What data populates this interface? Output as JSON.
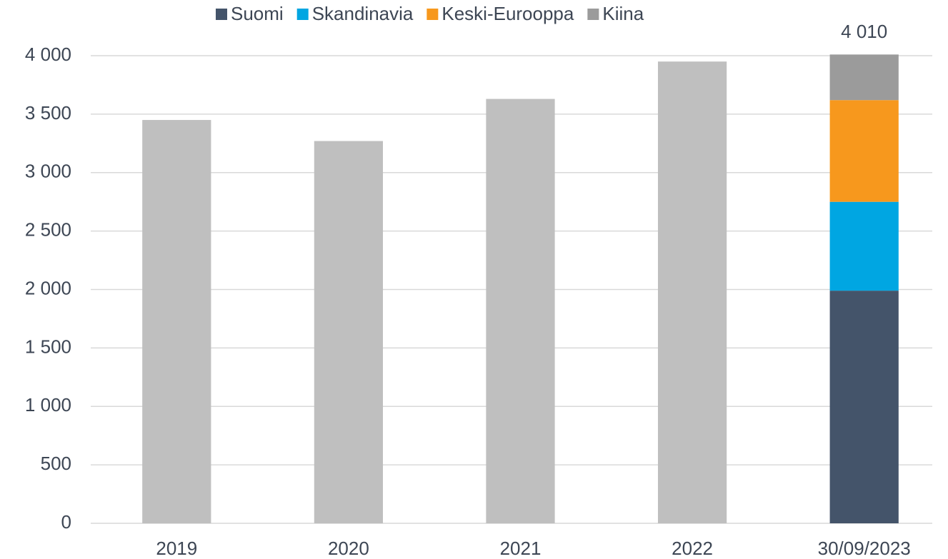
{
  "chart_data": {
    "type": "bar",
    "categories": [
      "2019",
      "2020",
      "2021",
      "2022",
      "30/09/2023"
    ],
    "values": [
      3450,
      3270,
      3630,
      3950,
      null
    ],
    "color": "#bfbfbf",
    "series": [
      {
        "name": "Suomi",
        "color": "#44546a",
        "values": [
          null,
          null,
          null,
          null,
          1990
        ]
      },
      {
        "name": "Skandinavia",
        "color": "#00a6e2",
        "values": [
          null,
          null,
          null,
          null,
          760
        ]
      },
      {
        "name": "Keski-Eurooppa",
        "color": "#f7981d",
        "values": [
          null,
          null,
          null,
          null,
          870
        ]
      },
      {
        "name": "Kiina",
        "color": "#9b9b9b",
        "values": [
          null,
          null,
          null,
          null,
          390
        ]
      }
    ],
    "total": 4010,
    "total_label": "4 010",
    "ylim": [
      0,
      4000
    ],
    "yticks": [
      0,
      500,
      {
        "value": 1000,
        "label": "1 000"
      },
      {
        "value": 1500,
        "label": "1 500"
      },
      {
        "value": 2000,
        "label": "2 000"
      },
      {
        "value": 2500,
        "label": "2 500"
      },
      {
        "value": 3000,
        "label": "3 000"
      },
      {
        "value": 3500,
        "label": "3 500"
      },
      {
        "value": 4000,
        "label": "4 000"
      }
    ],
    "grid": true,
    "legend": "top"
  }
}
